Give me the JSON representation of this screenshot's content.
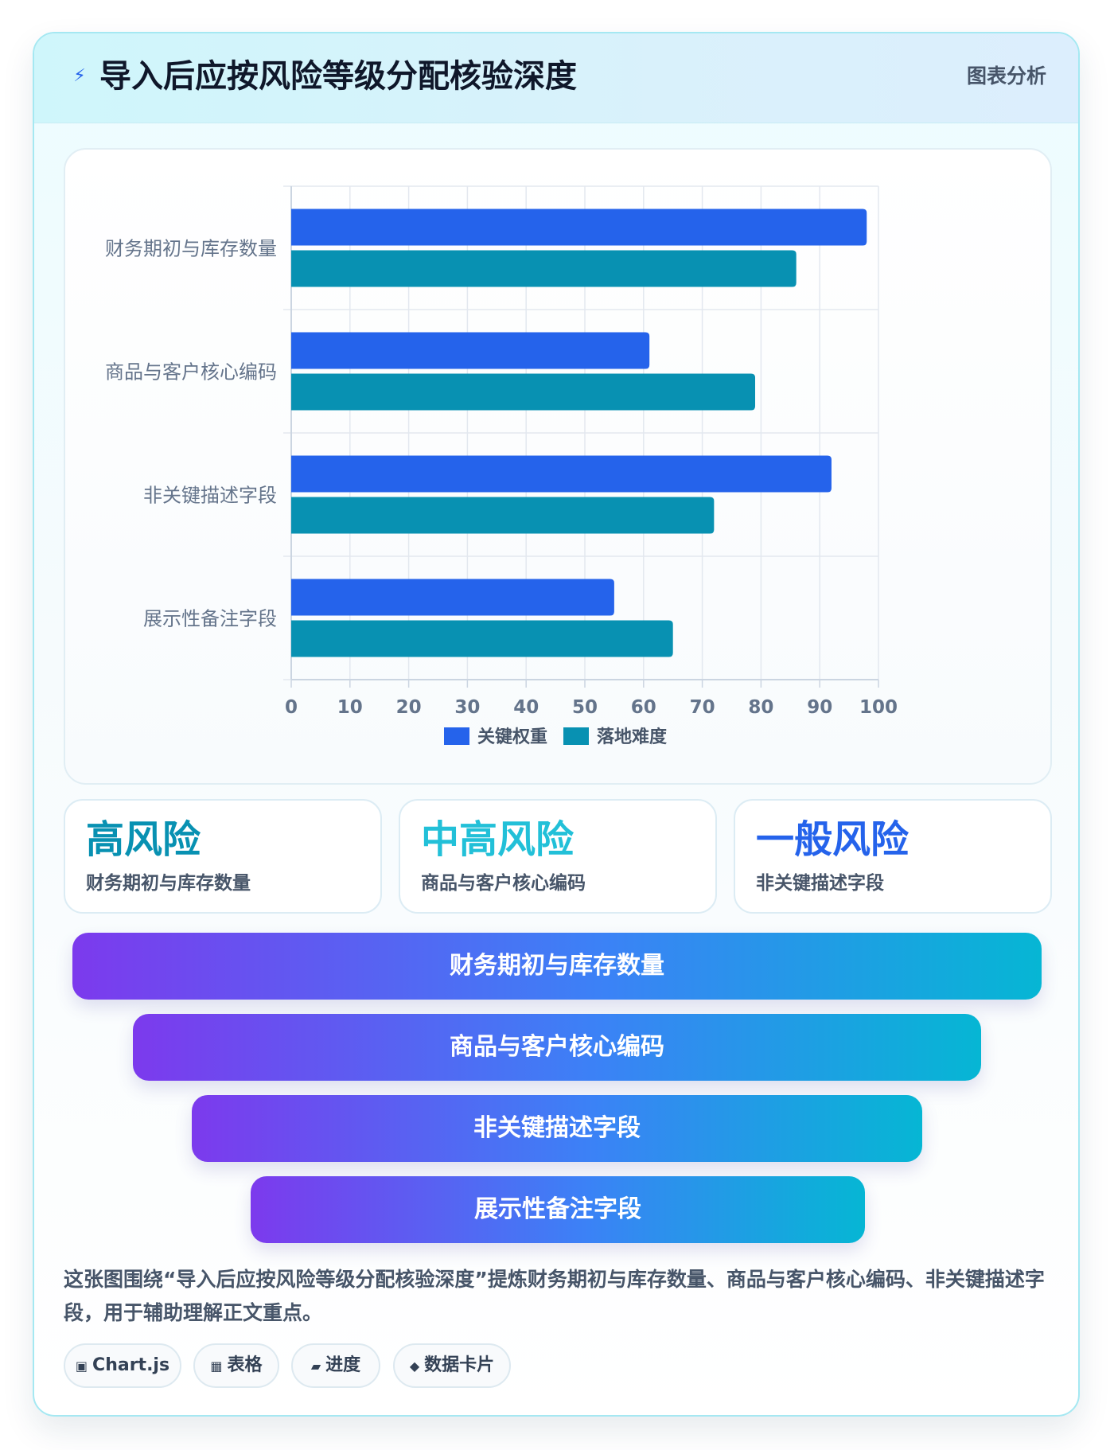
{
  "header": {
    "icon": "bolt-icon",
    "title": "导入后应按风险等级分配核验深度",
    "tag": "图表分析"
  },
  "chart_data": {
    "type": "bar",
    "orientation": "horizontal",
    "categories": [
      "财务期初与库存数量",
      "商品与客户核心编码",
      "非关键描述字段",
      "展示性备注字段"
    ],
    "series": [
      {
        "name": "关键权重",
        "values": [
          98,
          61,
          92,
          55
        ],
        "color": "#2563eb"
      },
      {
        "name": "落地难度",
        "values": [
          86,
          79,
          72,
          65
        ],
        "color": "#0891b2"
      }
    ],
    "xlim": [
      0,
      100
    ],
    "xticks": [
      "0",
      "10",
      "20",
      "30",
      "40",
      "50",
      "60",
      "70",
      "80",
      "90",
      "100"
    ],
    "grid": true,
    "legend": "bottom"
  },
  "risk_cards": [
    {
      "title": "高风险",
      "subtitle": "财务期初与库存数量",
      "color": "#0891b2"
    },
    {
      "title": "中高风险",
      "subtitle": "商品与客户核心编码",
      "color": "#22c0d8"
    },
    {
      "title": "一般风险",
      "subtitle": "非关键描述字段",
      "color": "#2563eb"
    }
  ],
  "funnel": [
    "财务期初与库存数量",
    "商品与客户核心编码",
    "非关键描述字段",
    "展示性备注字段"
  ],
  "summary": "这张图围绕“导入后应按风险等级分配核验深度”提炼财务期初与库存数量、商品与客户核心编码、非关键描述字段，用于辅助理解正文重点。",
  "chips": [
    {
      "icon": "chart-icon",
      "glyph": "▣",
      "label": "Chart.js"
    },
    {
      "icon": "table-icon",
      "glyph": "▦",
      "label": "表格"
    },
    {
      "icon": "progress-icon",
      "glyph": "▰",
      "label": "进度"
    },
    {
      "icon": "diamond-icon",
      "glyph": "◆",
      "label": "数据卡片"
    }
  ]
}
